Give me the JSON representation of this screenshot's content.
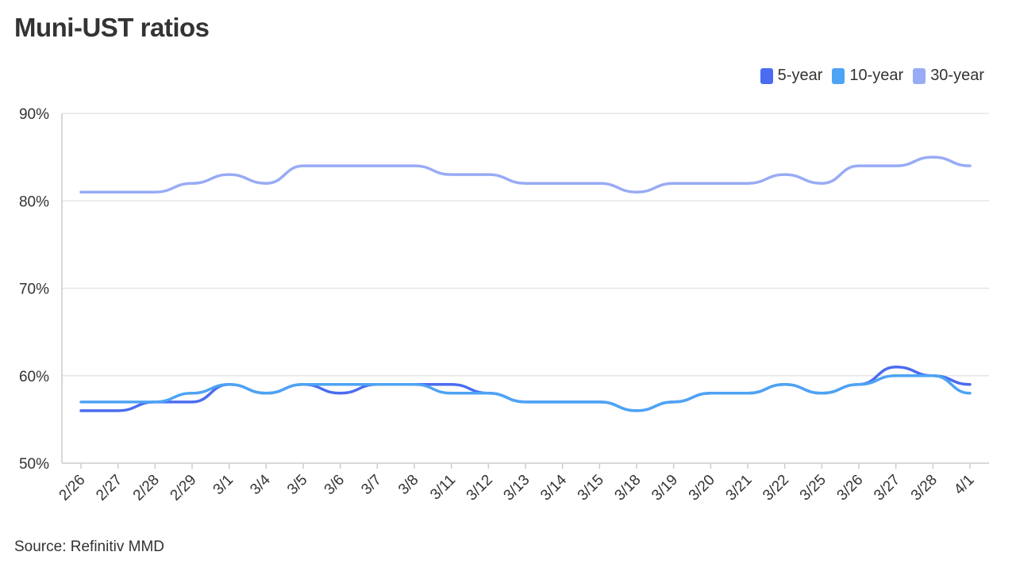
{
  "chart_data": {
    "type": "line",
    "title": "Muni-UST ratios",
    "source": "Source: Refinitiv MMD",
    "categories": [
      "2/26",
      "2/27",
      "2/28",
      "2/29",
      "3/1",
      "3/4",
      "3/5",
      "3/6",
      "3/7",
      "3/8",
      "3/11",
      "3/12",
      "3/13",
      "3/14",
      "3/15",
      "3/18",
      "3/19",
      "3/20",
      "3/21",
      "3/22",
      "3/25",
      "3/26",
      "3/27",
      "3/28",
      "4/1"
    ],
    "ylim": [
      50,
      90
    ],
    "yticks": [
      50,
      60,
      70,
      80,
      90
    ],
    "ytick_labels": [
      "50%",
      "60%",
      "70%",
      "80%",
      "90%"
    ],
    "grid": true,
    "legend_position": "top-right",
    "series": [
      {
        "name": "5-year",
        "color": "#4a6cf0",
        "values": [
          56,
          56,
          57,
          57,
          59,
          58,
          59,
          58,
          59,
          59,
          59,
          58,
          57,
          57,
          57,
          56,
          57,
          58,
          58,
          59,
          58,
          59,
          61,
          60,
          59
        ]
      },
      {
        "name": "10-year",
        "color": "#4da3f4",
        "values": [
          57,
          57,
          57,
          58,
          59,
          58,
          59,
          59,
          59,
          59,
          58,
          58,
          57,
          57,
          57,
          56,
          57,
          58,
          58,
          59,
          58,
          59,
          60,
          60,
          58
        ]
      },
      {
        "name": "30-year",
        "color": "#98abf5",
        "values": [
          81,
          81,
          81,
          82,
          83,
          82,
          84,
          84,
          84,
          84,
          83,
          83,
          82,
          82,
          82,
          81,
          82,
          82,
          82,
          83,
          82,
          84,
          84,
          85,
          84
        ]
      }
    ]
  }
}
